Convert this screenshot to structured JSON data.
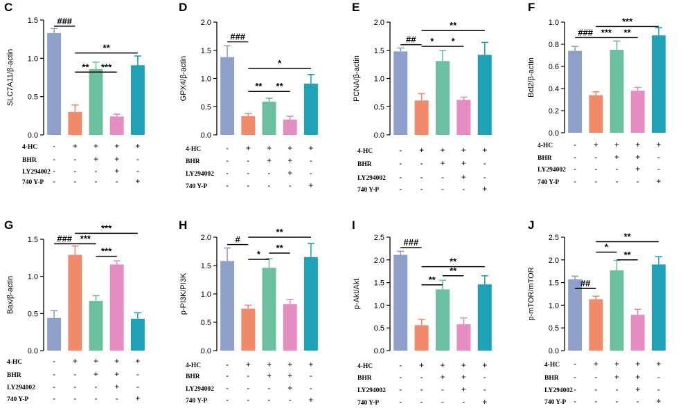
{
  "colors": [
    "#8e9fc9",
    "#f08a6a",
    "#6cbf9f",
    "#e58cc1",
    "#1fa2b8"
  ],
  "treatment_rows": [
    "4-HC",
    "BHR",
    "LY294002",
    "740 Y-P"
  ],
  "treatment_signs": [
    [
      "-",
      "+",
      "+",
      "+",
      "+"
    ],
    [
      "-",
      "-",
      "+",
      "+",
      "-"
    ],
    [
      "-",
      "-",
      "-",
      "+",
      "-"
    ],
    [
      "-",
      "-",
      "-",
      "-",
      "+"
    ]
  ],
  "chart_data": [
    {
      "type": "bar",
      "letter": "C",
      "ylabel": "SLC7A11/β-actin",
      "ylim": [
        0,
        1.5
      ],
      "yticks": [
        "0.0",
        "0.5",
        "1.0",
        "1.5"
      ],
      "values": [
        1.33,
        0.3,
        0.86,
        0.24,
        0.91
      ],
      "errors": [
        0.06,
        0.09,
        0.09,
        0.03,
        0.12
      ],
      "sig": [
        {
          "from": 0,
          "to": 1,
          "label": "###",
          "y": 1.42
        },
        {
          "from": 1,
          "to": 4,
          "label": "**",
          "y": 1.07
        },
        {
          "from": 1,
          "to": 2,
          "label": "**",
          "y": 0.82
        },
        {
          "from": 2,
          "to": 3,
          "label": "***",
          "y": 0.82
        }
      ]
    },
    {
      "type": "bar",
      "letter": "D",
      "ylabel": "GPX4/β-actin",
      "ylim": [
        0,
        2.0
      ],
      "yticks": [
        "0.0",
        "0.5",
        "1.0",
        "1.5",
        "2.0"
      ],
      "values": [
        1.38,
        0.33,
        0.59,
        0.27,
        0.91
      ],
      "errors": [
        0.2,
        0.05,
        0.06,
        0.06,
        0.16
      ],
      "sig": [
        {
          "from": 0,
          "to": 1,
          "label": "###",
          "y": 1.65
        },
        {
          "from": 1,
          "to": 4,
          "label": "*",
          "y": 1.18
        },
        {
          "from": 1,
          "to": 2,
          "label": "**",
          "y": 0.77
        },
        {
          "from": 2,
          "to": 3,
          "label": "**",
          "y": 0.77
        }
      ]
    },
    {
      "type": "bar",
      "letter": "E",
      "ylabel": "PCNA/β-actin",
      "ylim": [
        0,
        2.0
      ],
      "yticks": [
        "0.0",
        "0.5",
        "1.0",
        "1.5",
        "2.0"
      ],
      "values": [
        1.48,
        0.61,
        1.31,
        0.62,
        1.42
      ],
      "errors": [
        0.06,
        0.12,
        0.19,
        0.05,
        0.22
      ],
      "sig": [
        {
          "from": 0,
          "to": 1,
          "label": "##",
          "y": 1.6
        },
        {
          "from": 1,
          "to": 4,
          "label": "**",
          "y": 1.85
        },
        {
          "from": 1,
          "to": 2,
          "label": "*",
          "y": 1.57
        },
        {
          "from": 2,
          "to": 3,
          "label": "*",
          "y": 1.57
        }
      ]
    },
    {
      "type": "bar",
      "letter": "F",
      "ylabel": "Bcl2/β-actin",
      "ylim": [
        0,
        1.0
      ],
      "yticks": [
        "0.0",
        "0.2",
        "0.4",
        "0.6",
        "0.8",
        "1.0"
      ],
      "values": [
        0.74,
        0.34,
        0.75,
        0.38,
        0.88
      ],
      "errors": [
        0.04,
        0.03,
        0.08,
        0.03,
        0.07
      ],
      "sig": [
        {
          "from": 0,
          "to": 1,
          "label": "###",
          "y": 0.86
        },
        {
          "from": 1,
          "to": 4,
          "label": "***",
          "y": 0.96
        },
        {
          "from": 1,
          "to": 2,
          "label": "***",
          "y": 0.86
        },
        {
          "from": 2,
          "to": 3,
          "label": "**",
          "y": 0.86
        }
      ]
    },
    {
      "type": "bar",
      "letter": "G",
      "ylabel": "Bax/β-actin",
      "ylim": [
        0,
        1.5
      ],
      "yticks": [
        "0.0",
        "0.5",
        "1.0",
        "1.5"
      ],
      "values": [
        0.44,
        1.29,
        0.67,
        1.16,
        0.43
      ],
      "errors": [
        0.1,
        0.12,
        0.07,
        0.05,
        0.08
      ],
      "sig": [
        {
          "from": 0,
          "to": 1,
          "label": "###",
          "y": 1.44
        },
        {
          "from": 1,
          "to": 4,
          "label": "***",
          "y": 1.58
        },
        {
          "from": 1,
          "to": 2,
          "label": "***",
          "y": 1.44
        },
        {
          "from": 2,
          "to": 3,
          "label": "***",
          "y": 1.27
        }
      ]
    },
    {
      "type": "bar",
      "letter": "H",
      "ylabel": "p-PI3K/PI3K",
      "ylim": [
        0,
        2.0
      ],
      "yticks": [
        "0.0",
        "0.5",
        "1.0",
        "1.5",
        "2.0"
      ],
      "values": [
        1.58,
        0.74,
        1.46,
        0.82,
        1.65
      ],
      "errors": [
        0.23,
        0.06,
        0.16,
        0.08,
        0.24
      ],
      "sig": [
        {
          "from": 0,
          "to": 1,
          "label": "#",
          "y": 1.87
        },
        {
          "from": 1,
          "to": 4,
          "label": "**",
          "y": 2.0
        },
        {
          "from": 1,
          "to": 2,
          "label": "*",
          "y": 1.61
        },
        {
          "from": 2,
          "to": 3,
          "label": "**",
          "y": 1.72
        }
      ]
    },
    {
      "type": "bar",
      "letter": "I",
      "ylabel": "p-Akt/Akt",
      "ylim": [
        0,
        2.5
      ],
      "yticks": [
        "0.0",
        "0.5",
        "1.0",
        "1.5",
        "2.0",
        "2.5"
      ],
      "values": [
        2.11,
        0.56,
        1.35,
        0.58,
        1.46
      ],
      "errors": [
        0.08,
        0.13,
        0.2,
        0.14,
        0.19
      ],
      "sig": [
        {
          "from": 0,
          "to": 1,
          "label": "###",
          "y": 2.27
        },
        {
          "from": 1,
          "to": 4,
          "label": "**",
          "y": 1.85
        },
        {
          "from": 1,
          "to": 2,
          "label": "**",
          "y": 1.45
        },
        {
          "from": 2,
          "to": 3,
          "label": "**",
          "y": 1.65
        }
      ]
    },
    {
      "type": "bar",
      "letter": "J",
      "ylabel": "p-mTOR/mTOR",
      "ylim": [
        0,
        2.5
      ],
      "yticks": [
        "0.0",
        "0.5",
        "1.0",
        "1.5",
        "2.0",
        "2.5"
      ],
      "values": [
        1.57,
        1.13,
        1.77,
        0.79,
        1.9
      ],
      "errors": [
        0.07,
        0.07,
        0.22,
        0.12,
        0.17
      ],
      "sig": [
        {
          "from": 0,
          "to": 1,
          "label": "##",
          "y": 1.37
        },
        {
          "from": 1,
          "to": 4,
          "label": "**",
          "y": 2.4
        },
        {
          "from": 1,
          "to": 2,
          "label": "*",
          "y": 2.17
        },
        {
          "from": 2,
          "to": 3,
          "label": "**",
          "y": 2.0
        }
      ]
    }
  ]
}
